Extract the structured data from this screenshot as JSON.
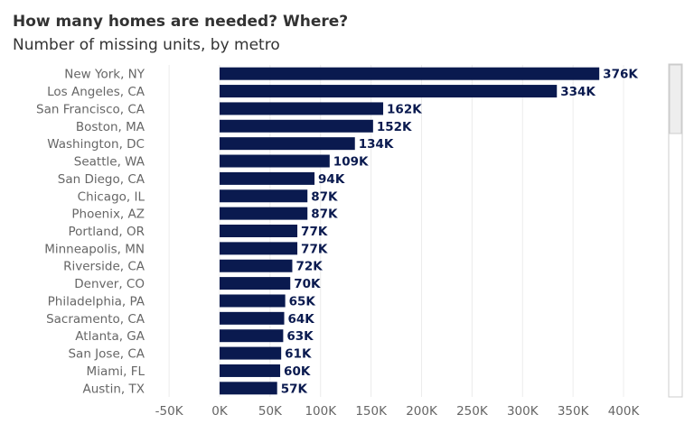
{
  "chart_data": {
    "type": "bar",
    "orientation": "horizontal",
    "title": "How many homes are needed? Where?",
    "subtitle": "Number of missing units, by metro",
    "categories": [
      "New York, NY",
      "Los Angeles, CA",
      "San Francisco, CA",
      "Boston, MA",
      "Washington, DC",
      "Seattle, WA",
      "San Diego, CA",
      "Chicago, IL",
      "Phoenix, AZ",
      "Portland, OR",
      "Minneapolis, MN",
      "Riverside, CA",
      "Denver, CO",
      "Philadelphia, PA",
      "Sacramento, CA",
      "Atlanta, GA",
      "San Jose, CA",
      "Miami, FL",
      "Austin, TX"
    ],
    "values": [
      376,
      334,
      162,
      152,
      134,
      109,
      94,
      87,
      87,
      77,
      77,
      72,
      70,
      65,
      64,
      63,
      61,
      60,
      57
    ],
    "data_labels": [
      "376K",
      "334K",
      "162K",
      "152K",
      "134K",
      "109K",
      "94K",
      "87K",
      "87K",
      "77K",
      "77K",
      "72K",
      "70K",
      "65K",
      "64K",
      "63K",
      "61K",
      "60K",
      "57K"
    ],
    "xlim": [
      -50,
      400
    ],
    "x_ticks": [
      -50,
      0,
      50,
      100,
      150,
      200,
      250,
      300,
      350,
      400
    ],
    "x_tick_labels": [
      "-50K",
      "0K",
      "50K",
      "100K",
      "150K",
      "200K",
      "250K",
      "300K",
      "350K",
      "400K"
    ],
    "xlabel": "",
    "ylabel": "",
    "grid": true,
    "bar_color": "#0a1a4f",
    "label_color": "#0a1a4f",
    "grid_color": "#ececec"
  }
}
